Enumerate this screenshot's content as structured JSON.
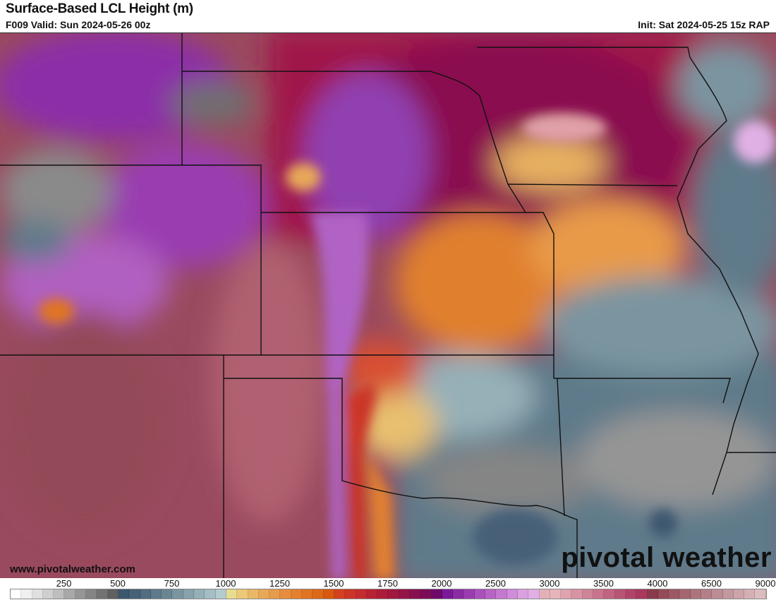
{
  "header": {
    "title": "Surface-Based LCL Height (m)",
    "valid": "F009 Valid: Sun 2024-05-26 00z",
    "init": "Init: Sat 2024-05-25 15z RAP"
  },
  "footer": {
    "url": "www.pivotalweather.com",
    "logo": "pivotal weather"
  },
  "colorbar": {
    "tick_labels": [
      "250",
      "500",
      "750",
      "1000",
      "1250",
      "1500",
      "1750",
      "2000",
      "2500",
      "3000",
      "3500",
      "4000",
      "6500",
      "9000"
    ],
    "colors": [
      "#ffffff",
      "#f0f0f0",
      "#e0e0e0",
      "#cfcfcf",
      "#bebebe",
      "#a8a8a8",
      "#959595",
      "#858585",
      "#737373",
      "#606060",
      "#3c5670",
      "#466178",
      "#526c80",
      "#5e7a8a",
      "#6a8592",
      "#7a95a0",
      "#88a2ab",
      "#96b0b8",
      "#a4bec4",
      "#b4cccf",
      "#e8dc90",
      "#ecc878",
      "#eab866",
      "#e8a858",
      "#e69c4c",
      "#e68c3c",
      "#e4802e",
      "#e07422",
      "#dc6818",
      "#d85810",
      "#d44020",
      "#cc3428",
      "#c42c30",
      "#b82234",
      "#ac1c3a",
      "#a01840",
      "#941448",
      "#88104e",
      "#7c0c58",
      "#70086a",
      "#7a1a98",
      "#8a2ca4",
      "#9a3cb0",
      "#aa50bc",
      "#b864c4",
      "#c478d0",
      "#d08cd8",
      "#daa0e0",
      "#e0b0e4",
      "#e4b0b8",
      "#e8b4bc",
      "#e0a4b0",
      "#d894a4",
      "#d08498",
      "#c8748c",
      "#c06480",
      "#b85474",
      "#b04468",
      "#a8385c",
      "#8a3a4a",
      "#944a58",
      "#9c5864",
      "#a46670",
      "#ac747c",
      "#b48088",
      "#bc8c94",
      "#c498a0",
      "#cca4aa",
      "#d4b0b4",
      "#dcbcbe"
    ]
  }
}
